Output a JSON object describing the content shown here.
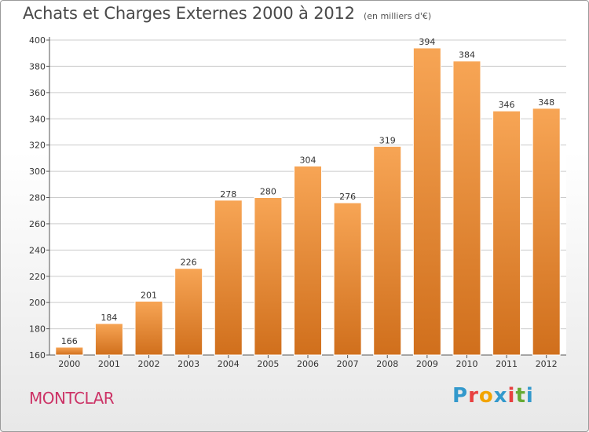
{
  "chart_data": {
    "type": "bar",
    "title": "Achats et Charges Externes 2000 à 2012",
    "subtitle": "(en milliers d'€)",
    "categories": [
      "2000",
      "2001",
      "2002",
      "2003",
      "2004",
      "2005",
      "2006",
      "2007",
      "2008",
      "2009",
      "2010",
      "2011",
      "2012"
    ],
    "values": [
      166,
      184,
      201,
      226,
      278,
      280,
      304,
      276,
      319,
      394,
      384,
      346,
      348
    ],
    "ylim": [
      160,
      400
    ],
    "yticks": [
      160,
      180,
      200,
      220,
      240,
      260,
      280,
      300,
      320,
      340,
      360,
      380,
      400
    ],
    "grid": true,
    "colors": {
      "bar_light": "#f7a555",
      "bar_dark": "#d06f1c",
      "grid": "#cccccc"
    }
  },
  "footer": {
    "location": "MONTCLAR",
    "brand": "Proxiti",
    "brand_colors": [
      "#3399cc",
      "#e84040",
      "#f2a400",
      "#3399cc",
      "#e84040",
      "#66aa33",
      "#3399cc"
    ]
  }
}
